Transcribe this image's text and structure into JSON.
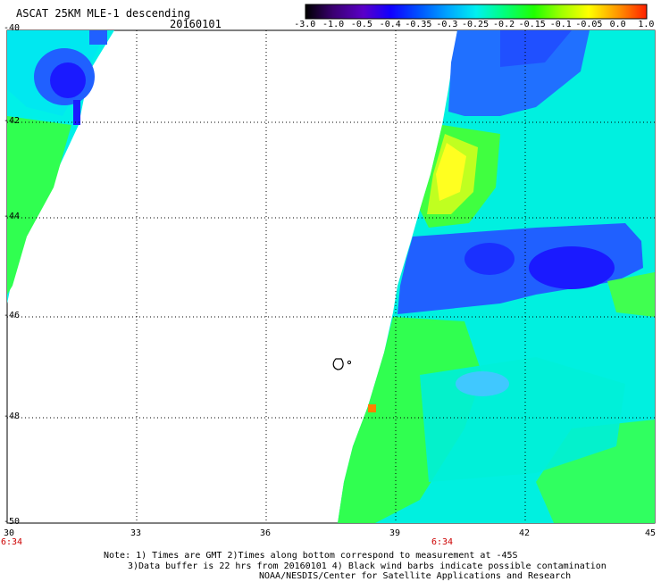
{
  "header": {
    "title": "ASCAT 25KM MLE-1 descending",
    "date": "20160101"
  },
  "colorbar": {
    "labels": [
      "-3.0",
      "-1.0",
      "-0.5",
      "-0.4",
      "-0.35",
      "-0.3",
      "-0.25",
      "-0.2",
      "-0.15",
      "-0.1",
      "-0.05",
      "0.0",
      "1.0"
    ],
    "colors": [
      "#000000",
      "#3a0070",
      "#5a00c8",
      "#1000ff",
      "#0050ff",
      "#00a8ff",
      "#00f0f0",
      "#00ff80",
      "#20ff00",
      "#a0ff00",
      "#ffff00",
      "#ff9000",
      "#ff2000"
    ]
  },
  "map": {
    "lon_labels": [
      "30",
      "33",
      "36",
      "39",
      "42",
      "45"
    ],
    "lat_labels": [
      "-40",
      "-42",
      "-44",
      "-46",
      "-48",
      "-50"
    ],
    "time_labels": [
      "6:34",
      "6:34"
    ]
  },
  "footer": {
    "line1": "Note: 1) Times are GMT 2)Times along bottom correspond to measurement at -45S",
    "line2": "3)Data buffer is 22 hrs from 20160101 4) Black wind barbs indicate possible contamination",
    "line3": "NOAA/NESDIS/Center for Satellite Applications and Research"
  },
  "palette": {
    "deep_blue": "#1a1aff",
    "blue": "#2060ff",
    "light_blue": "#40b0ff",
    "cyan": "#00f0f0",
    "aqua": "#00ffd0",
    "green": "#30ff40",
    "yellow_green": "#b0ff00",
    "yellow": "#ffff00",
    "orange": "#ff8000"
  }
}
